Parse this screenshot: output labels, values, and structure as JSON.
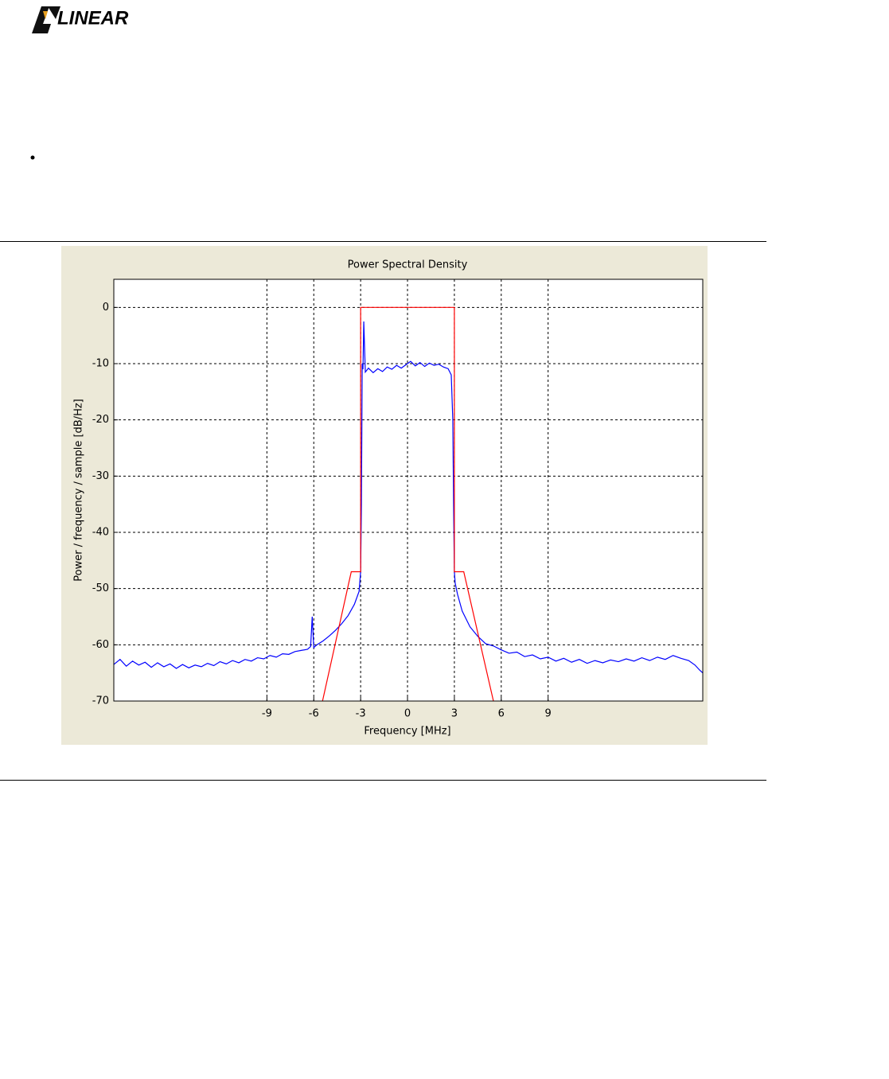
{
  "header": {
    "logo_text": "LINEAR"
  },
  "chart_data": {
    "type": "line",
    "title": "Power Spectral Density",
    "xlabel": "Frequency [MHz]",
    "ylabel": "Power / frequency / sample [dB/Hz]",
    "xlim": [
      -18.8,
      18.9
    ],
    "ylim": [
      -70,
      5
    ],
    "xticks": [
      -9,
      -6,
      -3,
      0,
      3,
      6,
      9
    ],
    "yticks": [
      -70,
      -60,
      -50,
      -40,
      -30,
      -20,
      -10,
      0
    ],
    "grid": true,
    "series": [
      {
        "color": "#0000ff",
        "x": [
          -18.8,
          -18.4,
          -18,
          -17.6,
          -17.2,
          -16.8,
          -16.4,
          -16,
          -15.6,
          -15.2,
          -14.8,
          -14.4,
          -14,
          -13.6,
          -13.2,
          -12.8,
          -12.4,
          -12,
          -11.6,
          -11.2,
          -10.8,
          -10.4,
          -10,
          -9.6,
          -9.2,
          -8.8,
          -8.4,
          -8,
          -7.6,
          -7.2,
          -6.8,
          -6.4,
          -6.2,
          -6.1,
          -6,
          -5.8,
          -5.4,
          -5,
          -4.6,
          -4.2,
          -3.8,
          -3.4,
          -3.1,
          -3,
          -2.95,
          -2.9,
          -2.85,
          -2.8,
          -2.7,
          -2.5,
          -2.2,
          -1.9,
          -1.6,
          -1.3,
          -1,
          -0.7,
          -0.4,
          -0.1,
          0.2,
          0.5,
          0.8,
          1.1,
          1.4,
          1.7,
          2,
          2.3,
          2.6,
          2.8,
          2.9,
          2.95,
          3,
          3.05,
          3.2,
          3.5,
          4,
          4.5,
          5,
          5.5,
          6,
          6.5,
          7,
          7.5,
          8,
          8.5,
          9,
          9.5,
          10,
          10.5,
          11,
          11.5,
          12,
          12.5,
          13,
          13.5,
          14,
          14.5,
          15,
          15.5,
          16,
          16.5,
          17,
          17.5,
          18,
          18.4,
          18.7,
          18.9
        ],
        "values": [
          -63.5,
          -62.6,
          -63.8,
          -62.9,
          -63.6,
          -63.1,
          -64,
          -63.2,
          -63.9,
          -63.4,
          -64.2,
          -63.5,
          -64.1,
          -63.6,
          -63.9,
          -63.3,
          -63.7,
          -63,
          -63.4,
          -62.8,
          -63.2,
          -62.6,
          -62.9,
          -62.3,
          -62.5,
          -61.9,
          -62.2,
          -61.6,
          -61.7,
          -61.2,
          -61,
          -60.8,
          -60.3,
          -55,
          -60.5,
          -60,
          -59.3,
          -58.4,
          -57.4,
          -56.2,
          -54.8,
          -52.8,
          -50.5,
          -47,
          -35,
          -10,
          -11,
          -2.5,
          -11.5,
          -10.8,
          -11.6,
          -10.9,
          -11.4,
          -10.6,
          -11,
          -10.3,
          -10.8,
          -10.2,
          -9.6,
          -10.4,
          -9.8,
          -10.5,
          -9.9,
          -10.3,
          -10.1,
          -10.6,
          -10.9,
          -12,
          -20,
          -35,
          -47,
          -49,
          -51,
          -54,
          -56.8,
          -58.5,
          -59.8,
          -60.2,
          -60.9,
          -61.5,
          -61.3,
          -62.1,
          -61.8,
          -62.5,
          -62.2,
          -62.9,
          -62.4,
          -63.1,
          -62.6,
          -63.3,
          -62.8,
          -63.2,
          -62.7,
          -63,
          -62.5,
          -62.9,
          -62.3,
          -62.8,
          -62.2,
          -62.6,
          -61.9,
          -62.4,
          -62.8,
          -63.6,
          -64.5,
          -65
        ]
      },
      {
        "color": "#ff0000",
        "x": [
          -5.44,
          -3.6,
          -3,
          -3,
          3,
          3,
          3.6,
          5.5
        ],
        "values": [
          -70,
          -47,
          -47,
          0,
          0,
          -47,
          -47,
          -70
        ]
      }
    ]
  }
}
